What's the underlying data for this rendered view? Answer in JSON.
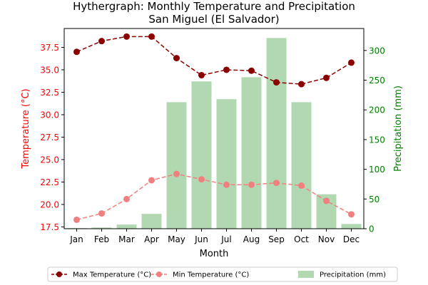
{
  "chart_data": {
    "type": "bar+line",
    "title": "Hythergraph: Monthly Temperature and Precipitation",
    "subtitle": "San Miguel (El Salvador)",
    "xlabel": "Month",
    "ylabel_left": "Temperature (°C)",
    "ylabel_right": "Precipitation (mm)",
    "categories": [
      "Jan",
      "Feb",
      "Mar",
      "Apr",
      "May",
      "Jun",
      "Jul",
      "Aug",
      "Sep",
      "Oct",
      "Nov",
      "Dec"
    ],
    "ylim_left": [
      17.3,
      39.6
    ],
    "yticks_left": [
      "17.5",
      "20.0",
      "22.5",
      "25.0",
      "27.5",
      "30.0",
      "32.5",
      "35.0",
      "37.5"
    ],
    "ylim_right": [
      0,
      337
    ],
    "yticks_right": [
      "0",
      "50",
      "100",
      "150",
      "200",
      "250",
      "300"
    ],
    "series": [
      {
        "name": "Max Temperature (°C)",
        "axis": "left",
        "kind": "line",
        "style": "dashed",
        "marker": "circle",
        "color": "#8b0000",
        "values": [
          37.0,
          38.2,
          38.7,
          38.7,
          36.3,
          34.4,
          35.0,
          34.9,
          33.6,
          33.4,
          34.1,
          35.8
        ]
      },
      {
        "name": "Min Temperature (°C)",
        "axis": "left",
        "kind": "line",
        "style": "dashed",
        "marker": "circle",
        "color": "#f08080",
        "values": [
          18.3,
          19.0,
          20.6,
          22.7,
          23.4,
          22.8,
          22.2,
          22.2,
          22.4,
          22.1,
          20.4,
          18.9
        ]
      },
      {
        "name": "Precipitation (mm)",
        "axis": "right",
        "kind": "bar",
        "color": "#b2d8b2",
        "values": [
          1,
          2,
          7,
          25,
          213,
          248,
          218,
          255,
          321,
          213,
          58,
          8
        ]
      }
    ],
    "legend_position": "bottom",
    "grid": false,
    "axis_colors": {
      "left": "#ff0000",
      "right": "#008000"
    }
  }
}
